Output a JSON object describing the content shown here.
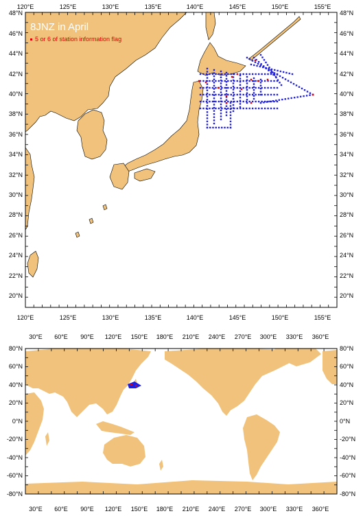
{
  "colors": {
    "land": "#f0c27b",
    "sea": "#ffffff",
    "station": "#1f1fe0",
    "flag": "#e00000",
    "frame": "#000000"
  },
  "regional_map": {
    "title": "8JNZ in April",
    "legend_label": "5 or 6 of station information flag",
    "top_ticks": [
      "120°E",
      "125°E",
      "130°E",
      "135°E",
      "140°E",
      "145°E",
      "150°E",
      "155°E"
    ],
    "bottom_ticks": [
      "120°E",
      "125°E",
      "130°E",
      "135°E",
      "140°E",
      "145°E",
      "150°E",
      "155°E"
    ],
    "left_ticks": [
      "48°N",
      "46°N",
      "44°N",
      "42°N",
      "40°N",
      "38°N",
      "36°N",
      "34°N",
      "32°N",
      "30°N",
      "28°N",
      "26°N",
      "24°N",
      "22°N",
      "20°N"
    ],
    "right_ticks": [
      "48°N",
      "46°N",
      "44°N",
      "42°N",
      "40°N",
      "38°N",
      "36°N",
      "34°N",
      "32°N",
      "30°N",
      "28°N",
      "26°N",
      "24°N",
      "22°N",
      "20°N"
    ]
  },
  "world_map": {
    "top_ticks": [
      "30°E",
      "60°E",
      "90°E",
      "120°E",
      "150°E",
      "180°E",
      "210°E",
      "240°E",
      "270°E",
      "300°E",
      "330°E",
      "360°E"
    ],
    "bottom_ticks": [
      "30°E",
      "60°E",
      "90°E",
      "120°E",
      "150°E",
      "180°E",
      "210°E",
      "240°E",
      "270°E",
      "300°E",
      "330°E",
      "360°E"
    ],
    "left_ticks": [
      "80°N",
      "60°N",
      "40°N",
      "20°N",
      "0°N",
      "-20°N",
      "-40°N",
      "-60°N",
      "-80°N"
    ],
    "right_ticks": [
      "80°N",
      "60°N",
      "40°N",
      "20°N",
      "0°N",
      "-20°N",
      "-40°N",
      "-60°N",
      "-80°N"
    ]
  }
}
